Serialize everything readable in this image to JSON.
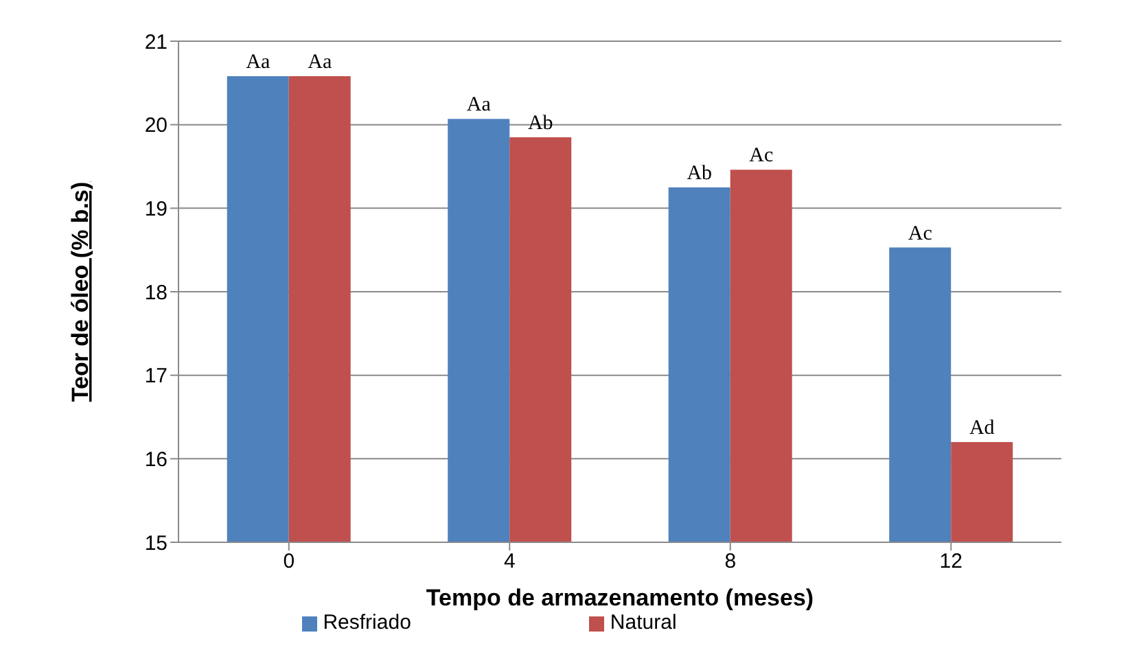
{
  "chart_data": {
    "type": "bar",
    "xlabel": "Tempo de armazenamento (meses)",
    "ylabel": "Teor de óleo (% b.s)",
    "categories": [
      "0",
      "4",
      "8",
      "12"
    ],
    "series": [
      {
        "name": "Resfriado",
        "color": "#4f81bd",
        "values": [
          20.58,
          20.07,
          19.25,
          18.53
        ],
        "value_labels": [
          "Aa",
          "Aa",
          "Ab",
          "Ac"
        ]
      },
      {
        "name": "Natural",
        "color": "#c0504d",
        "values": [
          20.58,
          19.85,
          19.46,
          16.2
        ],
        "value_labels": [
          "Aa",
          "Ab",
          "Ac",
          "Ad"
        ]
      }
    ],
    "ylim": [
      15,
      21
    ],
    "yticks": [
      15,
      16,
      17,
      18,
      19,
      20,
      21
    ],
    "grid": "y",
    "legend": "bottom"
  }
}
